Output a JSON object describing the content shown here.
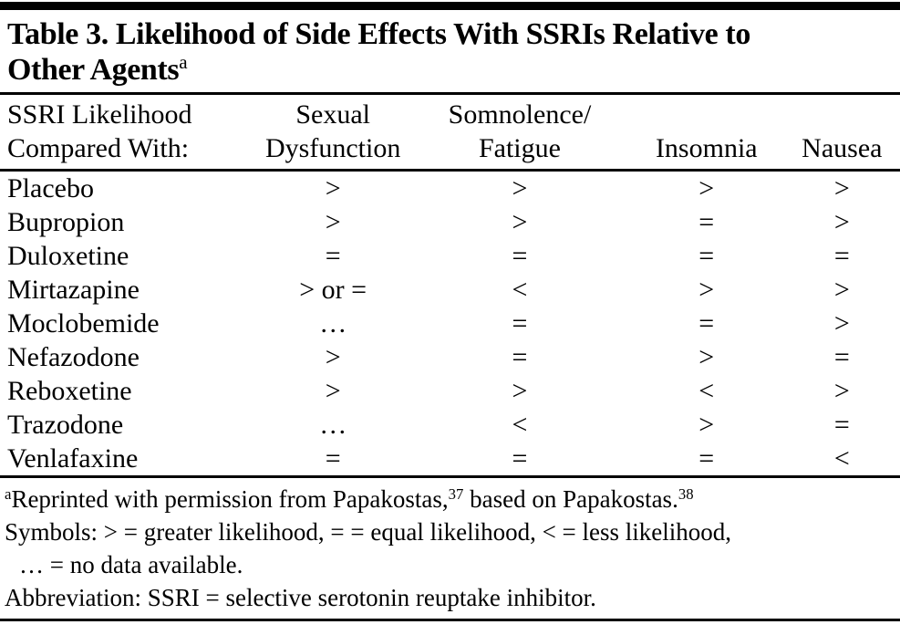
{
  "title": {
    "line1": "Table 3. Likelihood of Side Effects With SSRIs Relative to",
    "line2": "Other Agents",
    "footnote_marker": "a"
  },
  "table": {
    "header": {
      "col1_line1": "SSRI Likelihood",
      "col1_line2": "Compared With:",
      "col2_line1": "Sexual",
      "col2_line2": "Dysfunction",
      "col3_line1": "Somnolence/",
      "col3_line2": "Fatigue",
      "col4": "Insomnia",
      "col5": "Nausea"
    },
    "rows": [
      {
        "agent": "Placebo",
        "values": [
          ">",
          ">",
          ">",
          ">"
        ]
      },
      {
        "agent": "Bupropion",
        "values": [
          ">",
          ">",
          "=",
          ">"
        ]
      },
      {
        "agent": "Duloxetine",
        "values": [
          "=",
          "=",
          "=",
          "="
        ]
      },
      {
        "agent": "Mirtazapine",
        "values": [
          "> or =",
          "<",
          ">",
          ">"
        ]
      },
      {
        "agent": "Moclobemide",
        "values": [
          "…",
          "=",
          "=",
          ">"
        ]
      },
      {
        "agent": "Nefazodone",
        "values": [
          ">",
          "=",
          ">",
          "="
        ]
      },
      {
        "agent": "Reboxetine",
        "values": [
          ">",
          ">",
          "<",
          ">"
        ]
      },
      {
        "agent": "Trazodone",
        "values": [
          "…",
          "<",
          ">",
          "="
        ]
      },
      {
        "agent": "Venlafaxine",
        "values": [
          "=",
          "=",
          "=",
          "<"
        ]
      }
    ]
  },
  "footnotes": {
    "reprint": {
      "marker": "a",
      "text1": "Reprinted with permission from Papakostas,",
      "ref1": "37",
      "text2": " based on Papakostas.",
      "ref2": "38"
    },
    "symbols": {
      "line1": "Symbols: > = greater likelihood, = = equal likelihood, < = less likelihood,",
      "line2": "… = no data available."
    },
    "abbreviation": "Abbreviation: SSRI = selective serotonin reuptake inhibitor."
  },
  "colors": {
    "text": "#000000",
    "background": "#ffffff",
    "rule": "#000000"
  }
}
